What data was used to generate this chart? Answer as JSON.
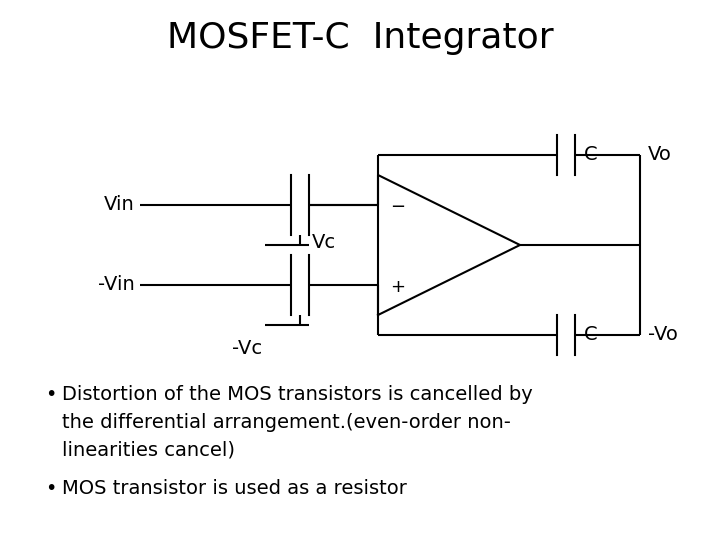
{
  "title": "MOSFET-C  Integrator",
  "title_fontsize": 26,
  "background_color": "#ffffff",
  "line_color": "#000000",
  "text_color": "#000000",
  "bullet_lines": [
    "Distortion of the MOS transistors is cancelled by",
    "the differential arrangement.(even-order non-",
    "linearities cancel)"
  ],
  "bullet2": "MOS transistor is used as a resistor",
  "label_fontsize": 14,
  "bullet_fontsize": 14
}
